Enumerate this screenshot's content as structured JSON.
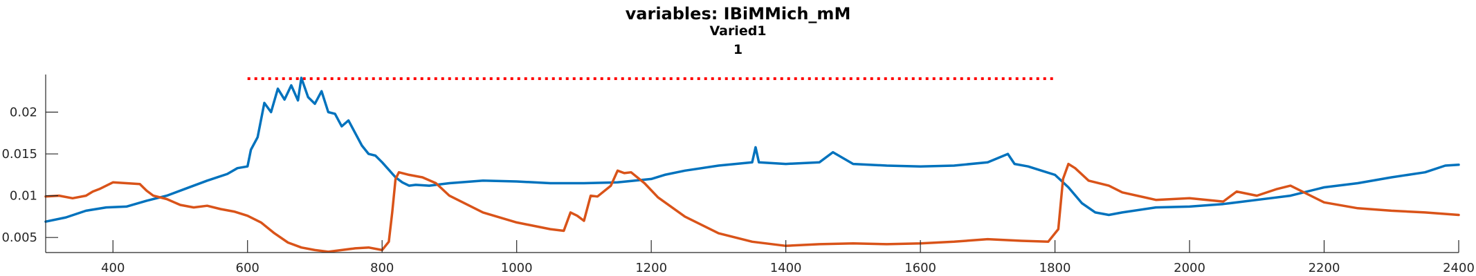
{
  "chart_data": {
    "type": "line",
    "title": "variables: IBiMMich_mM",
    "subtitle_lines": [
      "Varied1",
      "1"
    ],
    "xlim": [
      300,
      2400
    ],
    "ylim": [
      0.0032,
      0.0245
    ],
    "x_ticks": [
      400,
      600,
      800,
      1000,
      1200,
      1400,
      1600,
      1800,
      2000,
      2200,
      2400
    ],
    "y_ticks": [
      0.005,
      0.01,
      0.015,
      0.02
    ],
    "y_tick_labels": [
      "0.005",
      "0.01",
      "0.015",
      "0.02"
    ],
    "grid": false,
    "colors": {
      "blue": "#0072BD",
      "orange": "#D95319",
      "ref": "#FF0000"
    },
    "reference_line": {
      "style": "dotted",
      "x": [
        600,
        1800
      ],
      "y": 0.024
    },
    "series": [
      {
        "color": "#0072BD",
        "x": [
          300,
          330,
          360,
          390,
          420,
          450,
          480,
          510,
          540,
          570,
          585,
          600,
          605,
          615,
          625,
          635,
          645,
          655,
          665,
          675,
          680,
          690,
          700,
          710,
          720,
          730,
          740,
          750,
          760,
          770,
          780,
          790,
          800,
          810,
          820,
          830,
          840,
          850,
          870,
          900,
          950,
          1000,
          1050,
          1100,
          1150,
          1200,
          1220,
          1250,
          1300,
          1350,
          1355,
          1360,
          1400,
          1450,
          1470,
          1500,
          1550,
          1600,
          1650,
          1700,
          1730,
          1740,
          1760,
          1780,
          1800,
          1820,
          1840,
          1860,
          1880,
          1900,
          1950,
          2000,
          2050,
          2100,
          2150,
          2200,
          2250,
          2300,
          2350,
          2380,
          2400
        ],
        "y": [
          0.0069,
          0.0074,
          0.0082,
          0.0086,
          0.0087,
          0.0094,
          0.01,
          0.0109,
          0.0118,
          0.0126,
          0.0133,
          0.0135,
          0.0155,
          0.017,
          0.0211,
          0.02,
          0.0228,
          0.0215,
          0.0232,
          0.0214,
          0.0241,
          0.0218,
          0.021,
          0.0225,
          0.02,
          0.0198,
          0.0183,
          0.019,
          0.0175,
          0.016,
          0.015,
          0.0148,
          0.014,
          0.0131,
          0.0122,
          0.0116,
          0.0112,
          0.0113,
          0.0112,
          0.0115,
          0.0118,
          0.0117,
          0.0115,
          0.0115,
          0.0116,
          0.012,
          0.0125,
          0.013,
          0.0136,
          0.014,
          0.0158,
          0.014,
          0.0138,
          0.014,
          0.0152,
          0.0138,
          0.0136,
          0.0135,
          0.0136,
          0.014,
          0.015,
          0.0138,
          0.0135,
          0.013,
          0.0125,
          0.011,
          0.0091,
          0.008,
          0.0077,
          0.008,
          0.0086,
          0.0087,
          0.009,
          0.0095,
          0.01,
          0.011,
          0.0115,
          0.0122,
          0.0128,
          0.0136,
          0.0137
        ]
      },
      {
        "color": "#D95319",
        "x": [
          300,
          320,
          340,
          360,
          370,
          380,
          400,
          420,
          440,
          450,
          460,
          480,
          500,
          520,
          540,
          560,
          580,
          600,
          620,
          640,
          660,
          680,
          700,
          720,
          740,
          760,
          780,
          800,
          810,
          815,
          820,
          825,
          840,
          860,
          880,
          900,
          950,
          1000,
          1050,
          1070,
          1080,
          1090,
          1100,
          1110,
          1120,
          1140,
          1150,
          1160,
          1170,
          1190,
          1210,
          1250,
          1300,
          1350,
          1400,
          1450,
          1500,
          1550,
          1600,
          1650,
          1700,
          1750,
          1790,
          1805,
          1812,
          1820,
          1830,
          1850,
          1880,
          1900,
          1950,
          2000,
          2050,
          2070,
          2100,
          2130,
          2150,
          2200,
          2250,
          2300,
          2350,
          2400
        ],
        "y": [
          0.0099,
          0.01,
          0.0097,
          0.01,
          0.0105,
          0.0108,
          0.0116,
          0.0115,
          0.0114,
          0.0106,
          0.01,
          0.0096,
          0.0089,
          0.0086,
          0.0088,
          0.0084,
          0.0081,
          0.0076,
          0.0068,
          0.0055,
          0.0044,
          0.0038,
          0.0035,
          0.0033,
          0.0035,
          0.0037,
          0.0038,
          0.0035,
          0.0045,
          0.008,
          0.012,
          0.0128,
          0.0125,
          0.0122,
          0.0115,
          0.01,
          0.008,
          0.0068,
          0.006,
          0.0058,
          0.008,
          0.0076,
          0.007,
          0.01,
          0.0099,
          0.0112,
          0.013,
          0.0127,
          0.0128,
          0.0115,
          0.0098,
          0.0075,
          0.0055,
          0.0045,
          0.004,
          0.0042,
          0.0043,
          0.0042,
          0.0043,
          0.0045,
          0.0048,
          0.0046,
          0.0045,
          0.006,
          0.012,
          0.0138,
          0.0133,
          0.0118,
          0.0112,
          0.0104,
          0.0095,
          0.0097,
          0.0093,
          0.0105,
          0.01,
          0.0108,
          0.0112,
          0.0092,
          0.0085,
          0.0082,
          0.008,
          0.0077
        ]
      }
    ]
  }
}
